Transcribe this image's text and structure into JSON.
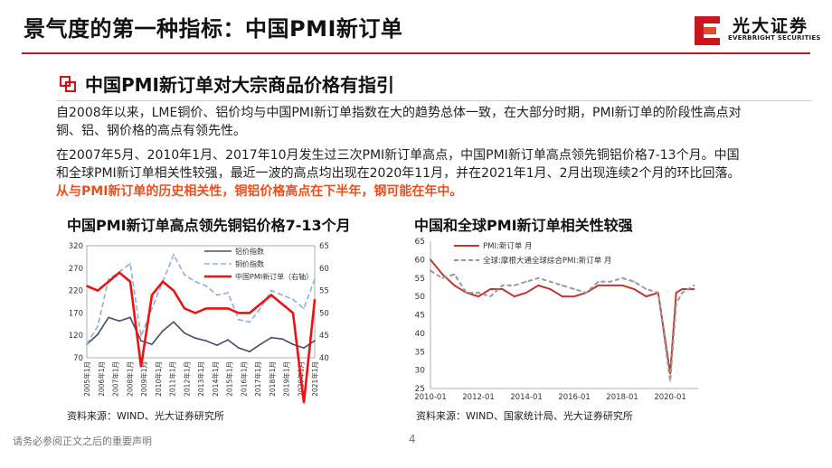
{
  "header": {
    "title": "景气度的第一种指标：中国PMI新订单",
    "logo_cn": "光大证券",
    "logo_en": "EVERBRIGHT SECURITIES",
    "brand_color": "#c8161d"
  },
  "section": {
    "subtitle": "中国PMI新订单对大宗商品价格有指引",
    "para1": "自2008年以来，LME铜价、铝价均与中国PMI新订单指数在大的趋势总体一致，在大部分时期，PMI新订单的阶段性高点对铜、铝、钢价格的高点有领先性。",
    "para2_plain": "在2007年5月、2010年1月、2017年10月发生过三次PMI新订单高点，中国PMI新订单高点领先铜铝价格7-13个月。中国和全球PMI新订单相关性较强，最近一波的高点均出现在2020年11月，并在2021年1月、2月出现连续2个月的环比回落。",
    "para2_highlight": "从与PMI新订单的历史相关性，铜铝价格高点在下半年，钢可能在年中。",
    "highlight_color": "#e8501d"
  },
  "chart1": {
    "title": "中国PMI新订单高点领先铜铝价格7-13个月",
    "source": "资料来源：WIND、光大证券研究所"
  },
  "chart2": {
    "title": "中国和全球PMI新订单相关性较强",
    "source": "资料来源：WIND、国家统计局、光大证券研究所"
  },
  "chart_data": [
    {
      "type": "line",
      "x": [
        "2005年1月",
        "2005年10月",
        "2006年7月",
        "2007年4月",
        "2008年1月",
        "2008年10月",
        "2009年7月",
        "2010年4月",
        "2011年1月",
        "2011年10月",
        "2012年7月",
        "2013年4月",
        "2014年1月",
        "2014年10月",
        "2015年7月",
        "2016年4月",
        "2017年1月",
        "2017年10月",
        "2018年7月",
        "2019年4月",
        "2020年1月",
        "2020年10月"
      ],
      "xticks": [
        "2005年1月",
        "2006年1月",
        "2007年1月",
        "2008年1月",
        "2009年1月",
        "2010年1月",
        "2011年1月",
        "2012年1月",
        "2013年1月",
        "2014年1月",
        "2015年1月",
        "2016年1月",
        "2017年1月",
        "2018年1月",
        "2019年1月",
        "2020年1月",
        "2021年1月"
      ],
      "ylim_left": [
        70,
        320
      ],
      "yticks_left": [
        70,
        120,
        170,
        220,
        270,
        320
      ],
      "ylim_right": [
        40,
        65
      ],
      "yticks_right": [
        40,
        45,
        50,
        55,
        60,
        65
      ],
      "series": [
        {
          "name": "铝价指数",
          "axis": "left",
          "color": "#4a4a6a",
          "dash": false,
          "values": [
            100,
            122,
            160,
            152,
            160,
            108,
            100,
            130,
            150,
            125,
            114,
            108,
            98,
            110,
            92,
            84,
            100,
            115,
            112,
            100,
            92,
            108
          ]
        },
        {
          "name": "铜价指数",
          "axis": "left",
          "color": "#8fb0d8",
          "dash": true,
          "values": [
            100,
            140,
            245,
            262,
            280,
            118,
            180,
            240,
            300,
            255,
            240,
            230,
            210,
            215,
            155,
            150,
            180,
            220,
            210,
            200,
            180,
            245
          ]
        },
        {
          "name": "中国PMI新订单（右轴）",
          "axis": "right",
          "color": "#ee1111",
          "dash": false,
          "values": [
            56,
            55,
            57,
            59,
            57,
            38,
            54,
            57,
            55,
            51,
            50,
            51,
            51,
            51,
            50,
            50,
            52,
            54,
            52,
            50,
            30,
            53
          ]
        }
      ]
    },
    {
      "type": "line",
      "x": [
        "2010-01",
        "2010-07",
        "2011-01",
        "2011-07",
        "2012-01",
        "2012-07",
        "2013-01",
        "2013-07",
        "2014-01",
        "2014-07",
        "2015-01",
        "2015-07",
        "2016-01",
        "2016-07",
        "2017-01",
        "2017-07",
        "2018-01",
        "2018-07",
        "2019-01",
        "2019-07",
        "2020-01",
        "2020-04",
        "2020-07",
        "2021-01"
      ],
      "xticks": [
        "2010-01",
        "2012-01",
        "2014-01",
        "2016-01",
        "2018-01",
        "2020-01"
      ],
      "ylim": [
        25,
        65
      ],
      "yticks": [
        25,
        30,
        35,
        40,
        45,
        50,
        55,
        60,
        65
      ],
      "series": [
        {
          "name": "PMI:新订单 月",
          "color": "#c0392b",
          "dash": false,
          "values": [
            60,
            56,
            53,
            51,
            50,
            52,
            52,
            50,
            51,
            53,
            52,
            50,
            50,
            51,
            53,
            53,
            53,
            52,
            50,
            51,
            29,
            51,
            52,
            52
          ]
        },
        {
          "name": "全球:摩根大通全球综合PMI:新订单 月",
          "color": "#999999",
          "dash": true,
          "values": [
            57,
            55,
            56,
            51,
            51,
            50,
            53,
            53,
            54,
            55,
            54,
            53,
            52,
            51,
            54,
            54,
            55,
            54,
            52,
            51,
            27,
            48,
            51,
            53
          ]
        }
      ]
    }
  ],
  "footer": {
    "disclaimer": "请务必参阅正文之后的重要声明",
    "page": "4"
  }
}
